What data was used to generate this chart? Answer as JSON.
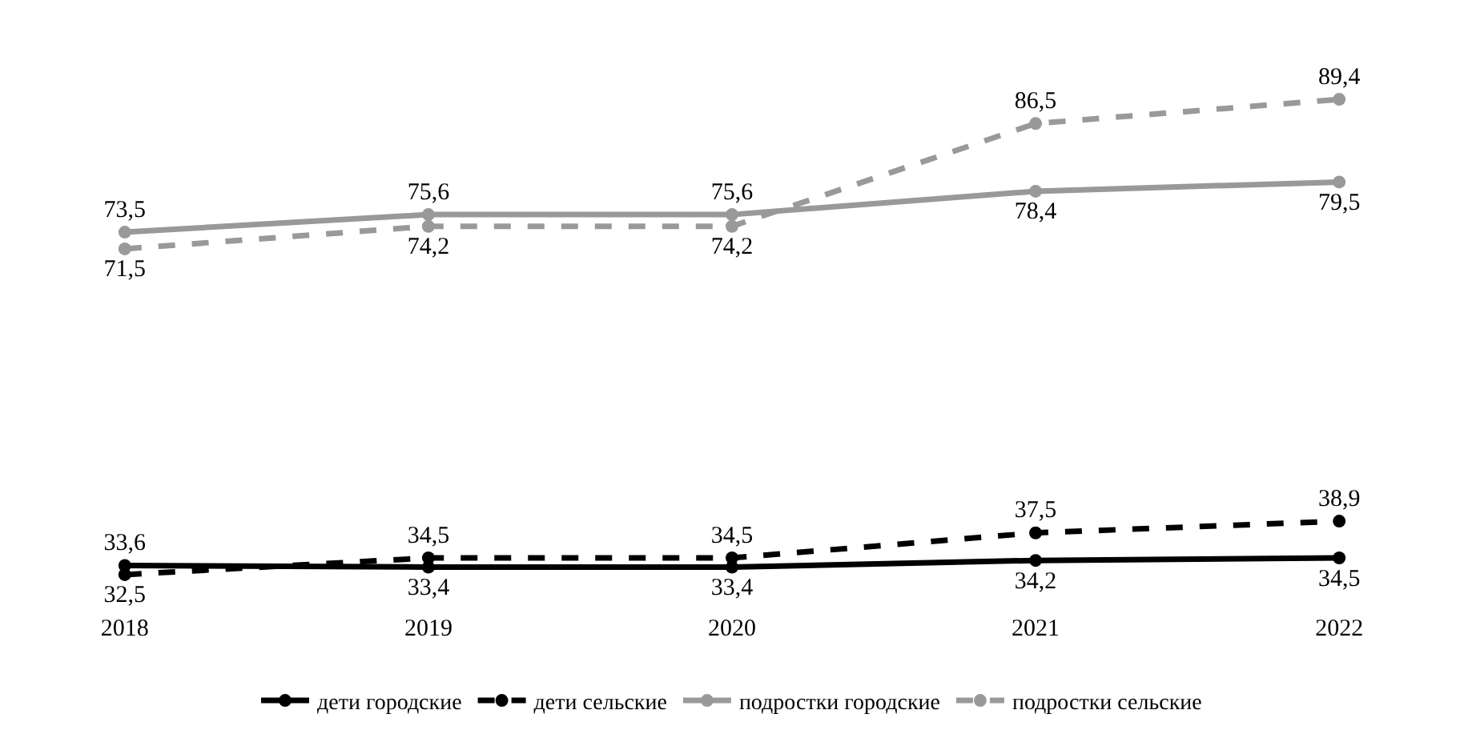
{
  "chart_data": {
    "type": "line",
    "categories": [
      "2018",
      "2019",
      "2020",
      "2021",
      "2022"
    ],
    "marker": "circle",
    "grid": false,
    "legend": "bottom",
    "tick_labels": "x",
    "series": [
      {
        "name": "дети городские",
        "color": "#000000",
        "line_style": "solid",
        "values": [
          33.6,
          33.4,
          33.4,
          34.2,
          34.5
        ],
        "value_labels": [
          "33,6",
          "33,4",
          "33,4",
          "34,2",
          "34,5"
        ]
      },
      {
        "name": "дети сельские",
        "color": "#000000",
        "line_style": "dashed",
        "values": [
          32.5,
          34.5,
          34.5,
          37.5,
          38.9
        ],
        "value_labels": [
          "32,5",
          "34,5",
          "34,5",
          "37,5",
          "38,9"
        ]
      },
      {
        "name": "подростки городские",
        "color": "#999999",
        "line_style": "solid",
        "values": [
          73.5,
          75.6,
          75.6,
          78.4,
          79.5
        ],
        "value_labels": [
          "73,5",
          "75,6",
          "75,6",
          "78,4",
          "79,5"
        ]
      },
      {
        "name": "подростки сельские",
        "color": "#999999",
        "line_style": "dashed",
        "values": [
          71.5,
          74.2,
          74.2,
          86.5,
          89.4
        ],
        "value_labels": [
          "71,5",
          "74,2",
          "74,2",
          "86,5",
          "89,4"
        ]
      }
    ]
  }
}
